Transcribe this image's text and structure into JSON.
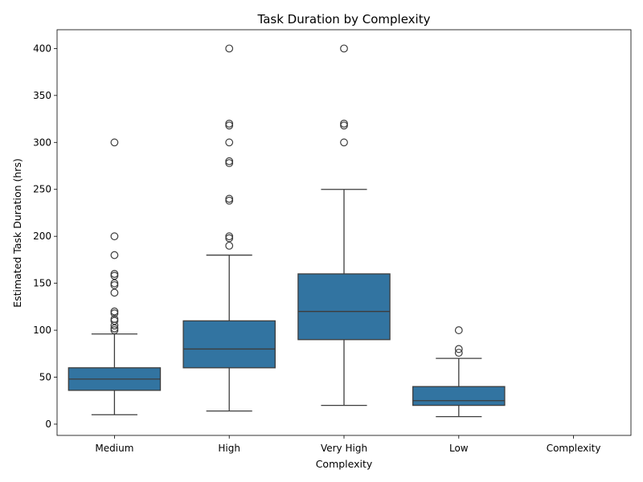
{
  "chart_data": {
    "type": "box",
    "title": "Task Duration by Complexity",
    "xlabel": "Complexity",
    "ylabel": "Estimated Task Duration (hrs)",
    "categories": [
      "Medium",
      "High",
      "Very High",
      "Low",
      "Complexity"
    ],
    "ylim": [
      -12,
      420
    ],
    "yticks": [
      0,
      50,
      100,
      150,
      200,
      250,
      300,
      350,
      400
    ],
    "box_color": "#3274a1",
    "line_color": "#3d3d3d",
    "boxes": [
      {
        "category": "Medium",
        "whisker_low": 10,
        "q1": 36,
        "median": 48,
        "q3": 60,
        "whisker_high": 96,
        "outliers": [
          100,
          102,
          105,
          110,
          112,
          118,
          120,
          140,
          148,
          150,
          158,
          160,
          180,
          200,
          300
        ]
      },
      {
        "category": "High",
        "whisker_low": 14,
        "q1": 60,
        "median": 80,
        "q3": 110,
        "whisker_high": 180,
        "outliers": [
          190,
          198,
          200,
          238,
          240,
          278,
          280,
          300,
          318,
          320,
          400
        ]
      },
      {
        "category": "Very High",
        "whisker_low": 20,
        "q1": 90,
        "median": 120,
        "q3": 160,
        "whisker_high": 250,
        "outliers": [
          300,
          318,
          320,
          400
        ]
      },
      {
        "category": "Low",
        "whisker_low": 8,
        "q1": 20,
        "median": 25,
        "q3": 40,
        "whisker_high": 70,
        "outliers": [
          76,
          80,
          100
        ]
      },
      {
        "category": "Complexity",
        "whisker_low": null,
        "q1": null,
        "median": null,
        "q3": null,
        "whisker_high": null,
        "outliers": []
      }
    ]
  }
}
